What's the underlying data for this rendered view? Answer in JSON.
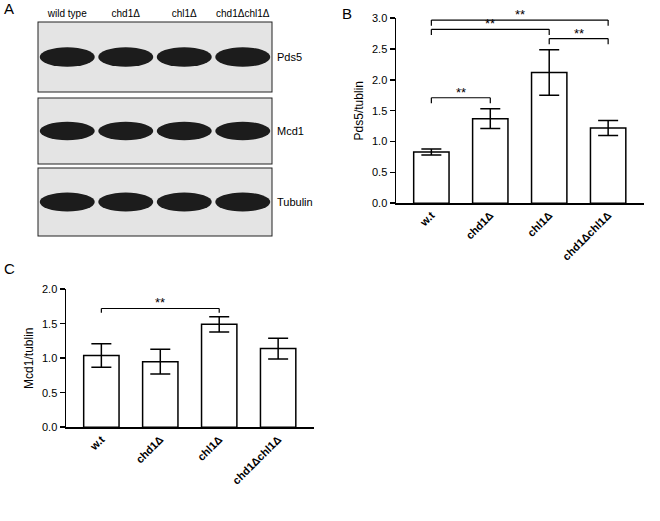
{
  "panel_labels": [
    "A",
    "B",
    "C"
  ],
  "blot": {
    "lanes": [
      "wild type",
      "chd1Δ",
      "chl1Δ",
      "chd1Δchl1Δ"
    ],
    "rows": [
      "Pds5",
      "Mcd1",
      "Tubulin"
    ]
  },
  "chart_data": [
    {
      "type": "bar",
      "panel": "B",
      "y_label": "Pds5/tublin",
      "categories": [
        "w.t",
        "chd1Δ",
        "chl1Δ",
        "chd1Δchl1Δ"
      ],
      "values": [
        0.83,
        1.37,
        2.12,
        1.22
      ],
      "errors": [
        0.05,
        0.16,
        0.37,
        0.12
      ],
      "color": "#ffffff",
      "ylim": [
        0,
        3.0
      ],
      "yticks": [
        {
          "value": 0,
          "label": "0.0"
        },
        0.5,
        {
          "value": 1,
          "label": "1.0"
        },
        1.5,
        {
          "value": 2,
          "label": "2.0"
        },
        2.5,
        {
          "value": 3,
          "label": "3.0"
        }
      ],
      "grid": false,
      "significance": [
        {
          "between": [
            "w.t",
            "chd1Δ"
          ],
          "label": "**"
        },
        {
          "between": [
            "chl1Δ",
            "chd1Δchl1Δ"
          ],
          "label": "**"
        },
        {
          "between": [
            "w.t",
            "chl1Δ"
          ],
          "label": "**"
        },
        {
          "between": [
            "w.t",
            "chd1Δchl1Δ"
          ],
          "label": "**"
        }
      ]
    },
    {
      "type": "bar",
      "panel": "C",
      "y_label": "Mcd1/tublin",
      "categories": [
        "w.t",
        "chd1Δ",
        "chl1Δ",
        "chd1Δchl1Δ"
      ],
      "values": [
        1.04,
        0.95,
        1.49,
        1.14
      ],
      "errors": [
        0.17,
        0.18,
        0.11,
        0.15
      ],
      "color": "#ffffff",
      "ylim": [
        0,
        2.0
      ],
      "yticks": [
        {
          "value": 0,
          "label": "0.0"
        },
        0.5,
        {
          "value": 1,
          "label": "1.0"
        },
        1.5,
        {
          "value": 2,
          "label": "2.0"
        }
      ],
      "grid": false,
      "significance": [
        {
          "between": [
            "w.t",
            "chl1Δ"
          ],
          "label": "**"
        }
      ]
    }
  ]
}
